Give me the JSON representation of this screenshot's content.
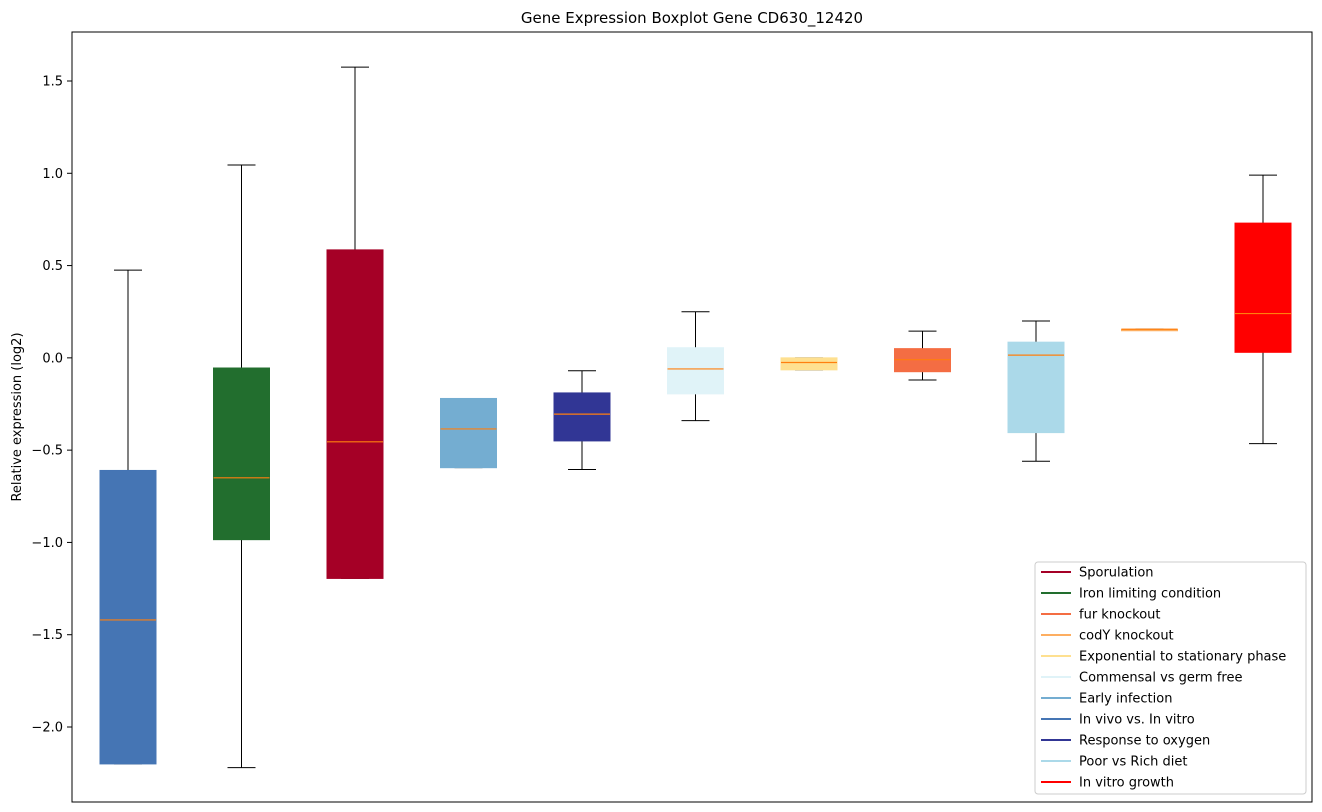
{
  "chart_data": {
    "type": "boxplot",
    "title": "Gene Expression Boxplot Gene CD630_12420",
    "xlabel": "",
    "ylabel": "Relative expression (log2)",
    "ylim": [
      -2.35,
      1.75
    ],
    "yticks": [
      1.5,
      1.0,
      0.5,
      0.0,
      -0.5,
      -1.0,
      -1.5,
      -2.0
    ],
    "ytick_labels": [
      "1.5",
      "1.0",
      "0.5",
      "0.0",
      "−0.5",
      "−1.0",
      "−1.5",
      "−2.0"
    ],
    "grid": false,
    "legend_position": "lower-right",
    "median_color": "#ff7f0e",
    "boxes": [
      {
        "color": "#4575b4",
        "whisker_low": -2.2,
        "q1": -2.2,
        "median": -1.42,
        "q3": -0.61,
        "whisker_high": 0.475
      },
      {
        "color": "#226e2e",
        "whisker_low": -2.22,
        "q1": -0.985,
        "median": -0.65,
        "q3": -0.055,
        "whisker_high": 1.045
      },
      {
        "color": "#a50026",
        "whisker_low": -1.195,
        "q1": -1.195,
        "median": -0.455,
        "q3": 0.585,
        "whisker_high": 1.575
      },
      {
        "color": "#74add1",
        "whisker_low": -0.595,
        "q1": -0.595,
        "median": -0.385,
        "q3": -0.22,
        "whisker_high": -0.22
      },
      {
        "color": "#313695",
        "whisker_low": -0.605,
        "q1": -0.45,
        "median": -0.305,
        "q3": -0.19,
        "whisker_high": -0.07
      },
      {
        "color": "#e0f3f8",
        "whisker_low": -0.34,
        "q1": -0.195,
        "median": -0.06,
        "q3": 0.055,
        "whisker_high": 0.25
      },
      {
        "color": "#fee090",
        "whisker_low": -0.065,
        "q1": -0.065,
        "median": -0.025,
        "q3": 0.0,
        "whisker_high": 0.0
      },
      {
        "color": "#f46d43",
        "whisker_low": -0.12,
        "q1": -0.075,
        "median": -0.01,
        "q3": 0.05,
        "whisker_high": 0.145
      },
      {
        "color": "#abd9e9",
        "whisker_low": -0.56,
        "q1": -0.405,
        "median": 0.015,
        "q3": 0.085,
        "whisker_high": 0.2
      },
      {
        "color": "#fdae61",
        "whisker_low": 0.155,
        "q1": 0.155,
        "median": 0.155,
        "q3": 0.155,
        "whisker_high": 0.155
      },
      {
        "color": "#ff0000",
        "whisker_low": -0.465,
        "q1": 0.03,
        "median": 0.24,
        "q3": 0.73,
        "whisker_high": 0.99
      }
    ],
    "legend": [
      {
        "label": "Sporulation",
        "color": "#a50026"
      },
      {
        "label": "Iron limiting condition",
        "color": "#226e2e"
      },
      {
        "label": "fur knockout",
        "color": "#f46d43"
      },
      {
        "label": "codY knockout",
        "color": "#fdae61"
      },
      {
        "label": "Exponential to stationary phase",
        "color": "#fee090"
      },
      {
        "label": "Commensal vs germ free",
        "color": "#e0f3f8"
      },
      {
        "label": "Early infection",
        "color": "#74add1"
      },
      {
        "label": "In vivo vs. In vitro",
        "color": "#4575b4"
      },
      {
        "label": "Response to oxygen",
        "color": "#313695"
      },
      {
        "label": "Poor vs Rich diet",
        "color": "#abd9e9"
      },
      {
        "label": "In vitro growth",
        "color": "#ff0000"
      }
    ]
  }
}
